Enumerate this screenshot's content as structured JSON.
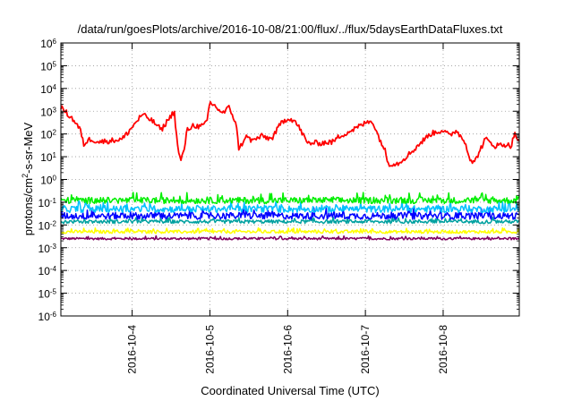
{
  "chart_data": {
    "type": "line",
    "title": "/data/run/goesPlots/archive/2016-10-08/21:00/flux/../flux/5daysEarthDataFluxes.txt",
    "xlabel": "Coordinated Universal Time (UTC)",
    "ylabel": "protons/cm2-s-sr-MeV",
    "ylabel_parts": {
      "pre": "protons/cm",
      "sup": "2",
      "post": "-s-sr-MeV"
    },
    "y_scale": "log",
    "ylim": [
      1e-06,
      1000000.0
    ],
    "y_ticks": [
      {
        "base": "10",
        "exp": "-6"
      },
      {
        "base": "10",
        "exp": "-5"
      },
      {
        "base": "10",
        "exp": "-4"
      },
      {
        "base": "10",
        "exp": "-3"
      },
      {
        "base": "10",
        "exp": "-2"
      },
      {
        "base": "10",
        "exp": "-1"
      },
      {
        "base": "10",
        "exp": "0"
      },
      {
        "base": "10",
        "exp": "1"
      },
      {
        "base": "10",
        "exp": "2"
      },
      {
        "base": "10",
        "exp": "3"
      },
      {
        "base": "10",
        "exp": "4"
      },
      {
        "base": "10",
        "exp": "5"
      },
      {
        "base": "10",
        "exp": "6"
      }
    ],
    "xlim": [
      "2016-10-03T02:00",
      "2016-10-08T23:30"
    ],
    "x_ticks": [
      "2016-10-4",
      "2016-10-5",
      "2016-10-6",
      "2016-10-7",
      "2016-10-8"
    ],
    "x_tick_dates": [
      "2016-10-04",
      "2016-10-05",
      "2016-10-06",
      "2016-10-07",
      "2016-10-08"
    ],
    "grid": true,
    "grid_style": "dotted",
    "legend": "none",
    "series": [
      {
        "color": "#ff0000",
        "noise_log10": 0.12,
        "points": [
          [
            "2016-10-03T02:00",
            1500
          ],
          [
            "2016-10-03T06:00",
            400
          ],
          [
            "2016-10-03T08:00",
            150
          ],
          [
            "2016-10-03T09:00",
            35
          ],
          [
            "2016-10-03T11:00",
            60
          ],
          [
            "2016-10-03T14:00",
            45
          ],
          [
            "2016-10-03T17:00",
            50
          ],
          [
            "2016-10-03T21:00",
            60
          ],
          [
            "2016-10-04T00:00",
            200
          ],
          [
            "2016-10-04T03:00",
            700
          ],
          [
            "2016-10-04T05:00",
            500
          ],
          [
            "2016-10-04T07:00",
            300
          ],
          [
            "2016-10-04T09:00",
            150
          ],
          [
            "2016-10-04T11:00",
            400
          ],
          [
            "2016-10-04T13:00",
            1000
          ],
          [
            "2016-10-04T14:00",
            30
          ],
          [
            "2016-10-04T15:00",
            6
          ],
          [
            "2016-10-04T16:00",
            20
          ],
          [
            "2016-10-04T17:00",
            150
          ],
          [
            "2016-10-04T19:00",
            250
          ],
          [
            "2016-10-04T21:00",
            200
          ],
          [
            "2016-10-04T23:00",
            300
          ],
          [
            "2016-10-05T00:00",
            2500
          ],
          [
            "2016-10-05T02:00",
            1500
          ],
          [
            "2016-10-05T04:00",
            800
          ],
          [
            "2016-10-05T06:00",
            1500
          ],
          [
            "2016-10-05T08:00",
            300
          ],
          [
            "2016-10-05T09:00",
            20
          ],
          [
            "2016-10-05T11:00",
            80
          ],
          [
            "2016-10-05T13:00",
            50
          ],
          [
            "2016-10-05T16:00",
            80
          ],
          [
            "2016-10-05T19:00",
            60
          ],
          [
            "2016-10-05T22:00",
            300
          ],
          [
            "2016-10-06T00:00",
            500
          ],
          [
            "2016-10-06T02:00",
            400
          ],
          [
            "2016-10-06T04:00",
            150
          ],
          [
            "2016-10-06T06:00",
            40
          ],
          [
            "2016-10-06T10:00",
            40
          ],
          [
            "2016-10-06T14:00",
            45
          ],
          [
            "2016-10-06T16:00",
            80
          ],
          [
            "2016-10-06T20:00",
            150
          ],
          [
            "2016-10-07T00:00",
            300
          ],
          [
            "2016-10-07T02:00",
            400
          ],
          [
            "2016-10-07T04:00",
            80
          ],
          [
            "2016-10-07T06:00",
            20
          ],
          [
            "2016-10-07T07:00",
            5
          ],
          [
            "2016-10-07T10:00",
            5
          ],
          [
            "2016-10-07T14:00",
            15
          ],
          [
            "2016-10-07T17:00",
            40
          ],
          [
            "2016-10-07T20:00",
            100
          ],
          [
            "2016-10-08T00:00",
            150
          ],
          [
            "2016-10-08T02:00",
            80
          ],
          [
            "2016-10-08T04:00",
            150
          ],
          [
            "2016-10-08T06:00",
            60
          ],
          [
            "2016-10-08T07:00",
            40
          ],
          [
            "2016-10-08T08:00",
            10
          ],
          [
            "2016-10-08T09:30",
            5
          ],
          [
            "2016-10-08T11:00",
            15
          ],
          [
            "2016-10-08T13:00",
            60
          ],
          [
            "2016-10-08T16:00",
            30
          ],
          [
            "2016-10-08T19:00",
            35
          ],
          [
            "2016-10-08T21:00",
            30
          ],
          [
            "2016-10-08T22:00",
            100
          ],
          [
            "2016-10-08T23:30",
            50
          ]
        ]
      },
      {
        "color": "#00ee00",
        "noise_log10": 0.14,
        "points": [
          [
            "2016-10-03T02:00",
            0.12
          ],
          [
            "2016-10-08T23:30",
            0.12
          ]
        ]
      },
      {
        "color": "#00c0ff",
        "noise_log10": 0.15,
        "points": [
          [
            "2016-10-03T02:00",
            0.05
          ],
          [
            "2016-10-08T23:30",
            0.05
          ]
        ]
      },
      {
        "color": "#0000ff",
        "noise_log10": 0.15,
        "points": [
          [
            "2016-10-03T02:00",
            0.025
          ],
          [
            "2016-10-08T23:30",
            0.025
          ]
        ]
      },
      {
        "color": "#00a0a0",
        "noise_log10": 0.08,
        "points": [
          [
            "2016-10-03T02:00",
            0.014
          ],
          [
            "2016-10-08T23:30",
            0.014
          ]
        ]
      },
      {
        "color": "#ffff00",
        "noise_log10": 0.07,
        "points": [
          [
            "2016-10-03T02:00",
            0.005
          ],
          [
            "2016-10-08T23:30",
            0.005
          ]
        ]
      },
      {
        "color": "#800060",
        "noise_log10": 0.05,
        "points": [
          [
            "2016-10-03T02:00",
            0.0025
          ],
          [
            "2016-10-08T23:30",
            0.0025
          ]
        ]
      }
    ]
  }
}
